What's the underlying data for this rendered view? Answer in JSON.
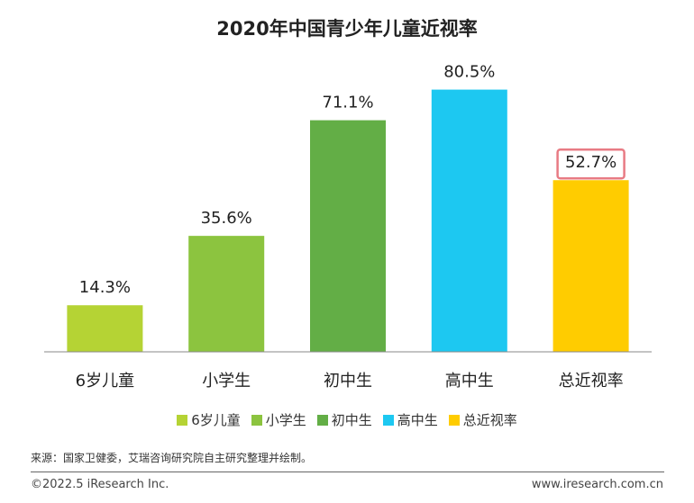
{
  "chart_data": {
    "type": "bar",
    "title": "2020年中国青少年儿童近视率",
    "categories": [
      "6岁儿童",
      "小学生",
      "初中生",
      "高中生",
      "总近视率"
    ],
    "values": [
      14.3,
      35.6,
      71.1,
      80.5,
      52.7
    ],
    "value_labels": [
      "14.3%",
      "35.6%",
      "71.1%",
      "80.5%",
      "52.7%"
    ],
    "colors": [
      "#B5D334",
      "#8CC43F",
      "#63AE46",
      "#1DC8F1",
      "#FFCC00"
    ],
    "highlight_index": 4,
    "highlight_color": "#E87B84",
    "ylim": [
      0,
      100
    ],
    "grid": false,
    "legend": {
      "position": "bottom",
      "entries": [
        "6岁儿童",
        "小学生",
        "初中生",
        "高中生",
        "总近视率"
      ]
    }
  },
  "footer": {
    "source": "来源：国家卫健委，艾瑞咨询研究院自主研究整理并绘制。",
    "copyright": "©2022.5 iResearch Inc.",
    "website": "www.iresearch.com.cn"
  }
}
